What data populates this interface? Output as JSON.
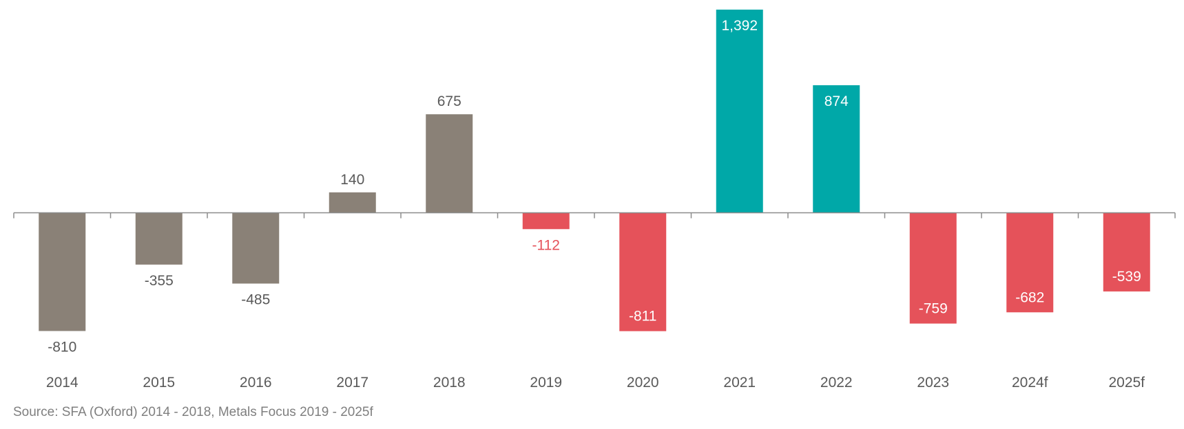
{
  "chart_data": {
    "type": "bar",
    "title": "",
    "xlabel": "",
    "ylabel": "",
    "categories": [
      "2014",
      "2015",
      "2016",
      "2017",
      "2018",
      "2019",
      "2020",
      "2021",
      "2022",
      "2023",
      "2024f",
      "2025f"
    ],
    "values": [
      -810,
      -355,
      -485,
      140,
      675,
      -112,
      -811,
      1392,
      874,
      -759,
      -682,
      -539
    ],
    "value_labels": [
      "-810",
      "-355",
      "-485",
      "140",
      "675",
      "-112",
      "-811",
      "1,392",
      "874",
      "-759",
      "-682",
      "-539"
    ],
    "ylim": [
      -1050,
      1420
    ],
    "grid": false,
    "legend": "none",
    "colors": {
      "historic": "#8a8177",
      "surplus": "#00a8a8",
      "deficit": "#e5525a",
      "axis": "#8c8c8c",
      "tick_text": "#595959",
      "label_dark": "#595959",
      "label_white": "#ffffff",
      "label_red": "#e5525a"
    },
    "bar_color_keys": [
      "historic",
      "historic",
      "historic",
      "historic",
      "historic",
      "deficit",
      "deficit",
      "surplus",
      "surplus",
      "deficit",
      "deficit",
      "deficit"
    ],
    "label_placement": [
      "outside",
      "outside",
      "outside",
      "outside",
      "outside",
      "outside",
      "inside",
      "inside",
      "inside",
      "inside",
      "inside",
      "inside"
    ],
    "label_color_keys": [
      "label_dark",
      "label_dark",
      "label_dark",
      "label_dark",
      "label_dark",
      "label_red",
      "label_white",
      "label_white",
      "label_white",
      "label_white",
      "label_white",
      "label_white"
    ]
  },
  "source": "Source: SFA (Oxford) 2014 - 2018, Metals Focus 2019 - 2025f"
}
